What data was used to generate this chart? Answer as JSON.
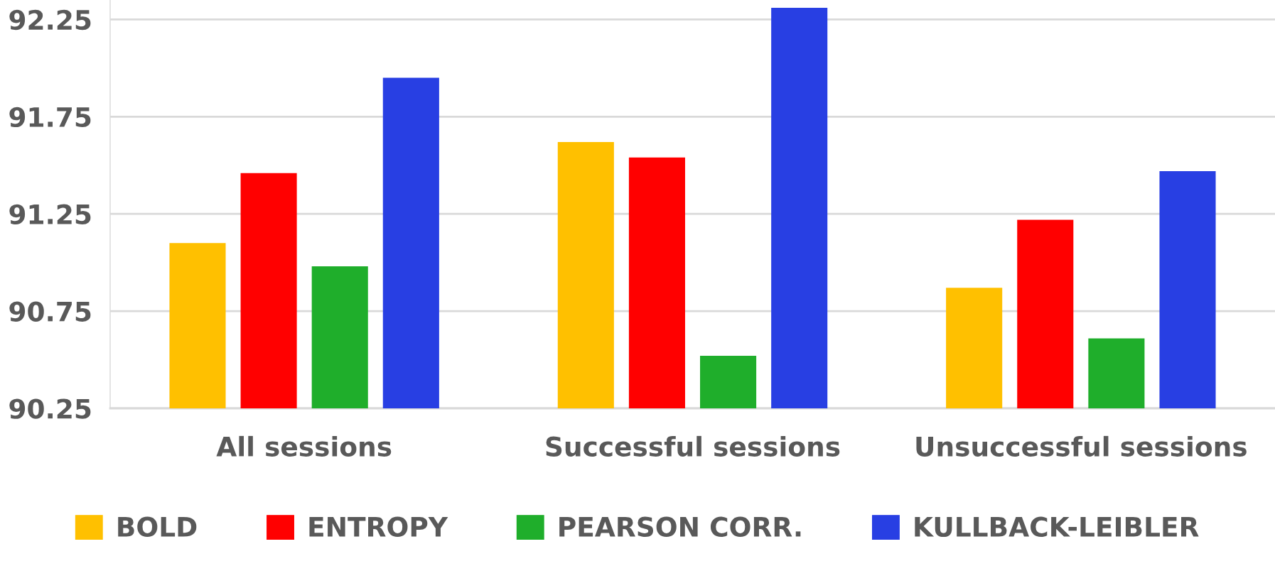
{
  "chart_data": {
    "type": "bar",
    "categories": [
      "All sessions",
      "Successful sessions",
      "Unsuccessful sessions"
    ],
    "series": [
      {
        "name": "BOLD",
        "color": "#ffc000",
        "values": [
          91.1,
          91.62,
          90.87
        ]
      },
      {
        "name": "ENTROPY",
        "color": "#ff0000",
        "values": [
          91.46,
          91.54,
          91.22
        ]
      },
      {
        "name": "PEARSON CORR.",
        "color": "#1fae2b",
        "values": [
          90.98,
          90.52,
          90.61
        ]
      },
      {
        "name": "KULLBACK-LEIBLER",
        "color": "#283fe3",
        "values": [
          91.95,
          92.31,
          91.47
        ]
      }
    ],
    "ylim": [
      90.25,
      92.35
    ],
    "yticks": [
      90.25,
      90.75,
      91.25,
      91.75,
      92.25
    ],
    "grid": "y",
    "legend": "bottom"
  }
}
